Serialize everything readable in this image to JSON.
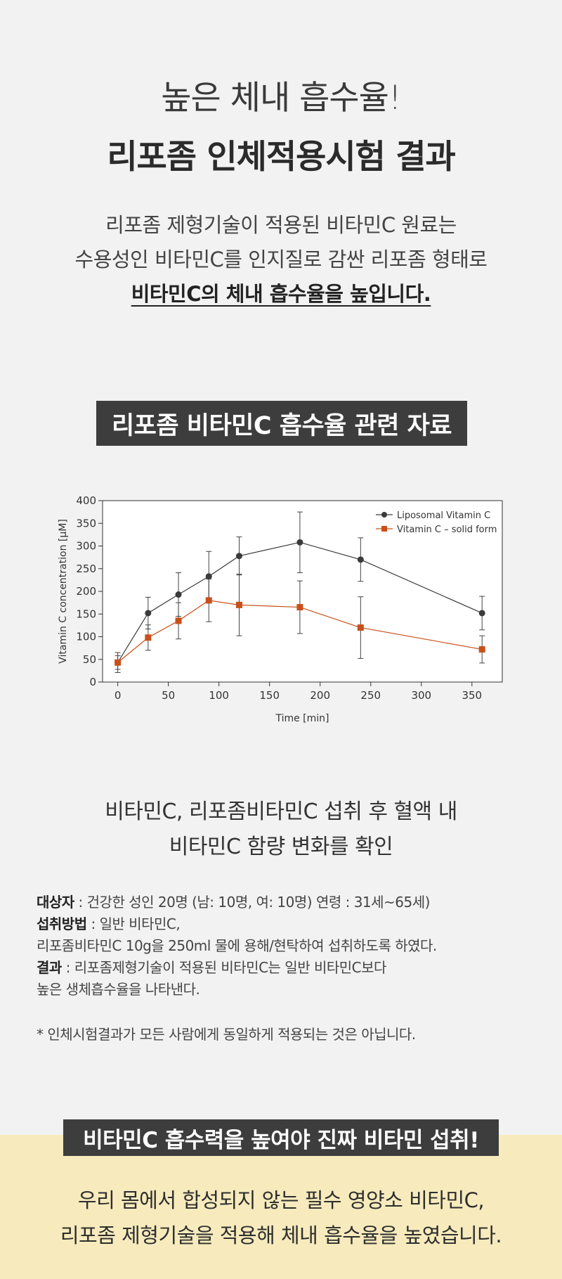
{
  "header": {
    "line1": "높은 체내 흡수율!",
    "line2": "리포좀 인체적용시험 결과"
  },
  "intro": {
    "line1": "리포좀 제형기술이 적용된 비타민C 원료는",
    "line2": "수용성인 비타민C를 인지질로 감싼 리포좀 형태로",
    "line3": "비타민C의 체내 흡수율을 높입니다."
  },
  "section_banner": "리포좀 비타민C 흡수율 관련 자료",
  "chart_data": {
    "type": "line",
    "title": "",
    "xlabel": "Time [min]",
    "ylabel": "Vitamin C concentration [μM]",
    "xlim": [
      -15,
      380
    ],
    "ylim": [
      0,
      400
    ],
    "xticks": [
      0,
      50,
      100,
      150,
      200,
      250,
      300,
      350
    ],
    "yticks": [
      0,
      50,
      100,
      150,
      200,
      250,
      300,
      350,
      400
    ],
    "legend_position": "top-right",
    "grid": false,
    "series": [
      {
        "name": "Liposomal Vitamin C",
        "color": "#3a3a3a",
        "marker": "circle",
        "x": [
          0,
          30,
          60,
          90,
          120,
          180,
          240,
          360
        ],
        "y": [
          43,
          152,
          193,
          233,
          278,
          308,
          270,
          152
        ],
        "err": [
          22,
          35,
          48,
          55,
          42,
          67,
          48,
          37
        ]
      },
      {
        "name": "Vitamin C – solid form",
        "color": "#c8501a",
        "marker": "square",
        "x": [
          0,
          30,
          60,
          90,
          120,
          180,
          240,
          360
        ],
        "y": [
          43,
          98,
          135,
          180,
          170,
          165,
          120,
          72
        ],
        "err": [
          15,
          28,
          40,
          47,
          68,
          58,
          68,
          30
        ]
      }
    ]
  },
  "chart_caption": {
    "line1": "비타민C, 리포좀비타민C 섭취 후 혈액 내",
    "line2": "비타민C 함량 변화를 확인"
  },
  "details": {
    "subject_label": "대상자",
    "subject_text": " : 건강한 성인 20명 (남: 10명, 여: 10명) 연령 : 31세~65세)",
    "method_label": "섭취방법",
    "method_text1": " : 일반 비타민C,",
    "method_text2": "리포좀비타민C 10g을 250ml 물에 용해/현탁하여 섭취하도록 하였다.",
    "result_label": "결과",
    "result_text1": " : 리포좀제형기술이 적용된 비타민C는 일반 비타민C보다",
    "result_text2": "높은 생체흡수율을 나타낸다."
  },
  "note": "* 인체시험결과가 모든 사람에게 동일하게 적용되는 것은 아닙니다.",
  "bottom": {
    "banner": "비타민C 흡수력을 높여야 진짜 비타민 섭취!",
    "line1": "우리 몸에서 합성되지 않는 필수 영양소 비타민C,",
    "line2": "리포좀 제형기술을 적용해 체내 흡수율을 높였습니다."
  }
}
